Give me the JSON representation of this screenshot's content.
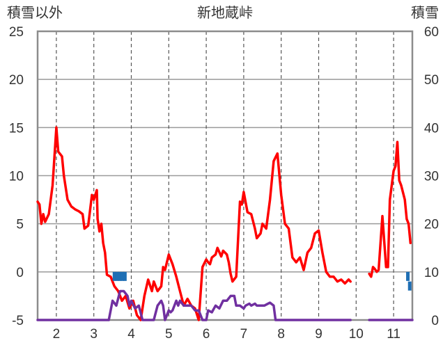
{
  "chart_data": {
    "type": "line",
    "title": "新地蔵峠",
    "left_axis_label": "積雪以外",
    "right_axis_label": "積雪",
    "x_range": [
      1.5,
      11.5
    ],
    "x_ticks": [
      2,
      3,
      4,
      5,
      6,
      7,
      8,
      9,
      10,
      11
    ],
    "x_tick_labels": [
      "2",
      "3",
      "4",
      "5",
      "6",
      "7",
      "8",
      "9",
      "10",
      "11"
    ],
    "y_left_range": [
      -5,
      25
    ],
    "y_left_ticks": [
      -5,
      0,
      5,
      10,
      15,
      20,
      25
    ],
    "y_left_tick_labels": [
      "-5",
      "0",
      "5",
      "10",
      "15",
      "20",
      "25"
    ],
    "y_right_range": [
      0,
      60
    ],
    "y_right_ticks": [
      0,
      10,
      20,
      30,
      40,
      50,
      60
    ],
    "y_right_tick_labels": [
      "0",
      "10",
      "20",
      "30",
      "40",
      "50",
      "60"
    ],
    "horizontal_gridlines": true,
    "vertical_gridlines": "dashed",
    "series": [
      {
        "axis": "left",
        "color": "#ff0000",
        "segments": [
          [
            [
              1.5,
              7.3
            ],
            [
              1.55,
              7.0
            ],
            [
              1.6,
              5.0
            ],
            [
              1.65,
              6.0
            ],
            [
              1.7,
              5.2
            ],
            [
              1.8,
              6.0
            ],
            [
              1.9,
              9.0
            ],
            [
              2.0,
              15.0
            ],
            [
              2.05,
              12.5
            ],
            [
              2.15,
              12.0
            ],
            [
              2.2,
              10.0
            ],
            [
              2.3,
              7.5
            ],
            [
              2.4,
              6.8
            ],
            [
              2.5,
              6.5
            ],
            [
              2.6,
              6.3
            ],
            [
              2.7,
              6.0
            ],
            [
              2.75,
              4.5
            ],
            [
              2.85,
              4.8
            ],
            [
              2.95,
              8.0
            ],
            [
              3.0,
              7.5
            ],
            [
              3.08,
              8.5
            ],
            [
              3.1,
              5.5
            ],
            [
              3.15,
              4.2
            ],
            [
              3.2,
              5.0
            ],
            [
              3.25,
              3.0
            ],
            [
              3.3,
              2.0
            ],
            [
              3.35,
              -0.3
            ],
            [
              3.45,
              -0.5
            ],
            [
              3.55,
              -1.5
            ],
            [
              3.65,
              -2.0
            ],
            [
              3.75,
              -3.0
            ],
            [
              3.85,
              -2.5
            ],
            [
              3.95,
              -3.8
            ],
            [
              4.05,
              -3.0
            ],
            [
              4.15,
              -4.5
            ],
            [
              4.25,
              -5.0
            ],
            [
              4.35,
              -2.5
            ],
            [
              4.45,
              -0.8
            ],
            [
              4.55,
              -2.0
            ],
            [
              4.6,
              -1.0
            ],
            [
              4.7,
              -2.0
            ],
            [
              4.8,
              -1.5
            ],
            [
              4.85,
              0.5
            ],
            [
              4.9,
              0.2
            ],
            [
              5.0,
              1.8
            ],
            [
              5.05,
              1.3
            ],
            [
              5.1,
              0.8
            ],
            [
              5.2,
              -0.5
            ],
            [
              5.3,
              -2.0
            ],
            [
              5.4,
              -3.5
            ],
            [
              5.5,
              -2.8
            ],
            [
              5.6,
              -3.5
            ],
            [
              5.7,
              -3.8
            ],
            [
              5.8,
              -5.0
            ],
            [
              5.9,
              0.5
            ],
            [
              6.0,
              1.3
            ],
            [
              6.05,
              1.0
            ],
            [
              6.1,
              0.8
            ],
            [
              6.15,
              1.5
            ],
            [
              6.25,
              1.8
            ],
            [
              6.3,
              2.5
            ],
            [
              6.4,
              1.6
            ],
            [
              6.45,
              2.2
            ],
            [
              6.55,
              1.8
            ],
            [
              6.6,
              1.0
            ],
            [
              6.65,
              -0.2
            ],
            [
              6.7,
              -1.0
            ],
            [
              6.8,
              -0.5
            ],
            [
              6.9,
              7.3
            ],
            [
              6.95,
              7.0
            ],
            [
              7.0,
              8.3
            ],
            [
              7.1,
              6.2
            ],
            [
              7.2,
              6.0
            ],
            [
              7.3,
              4.5
            ],
            [
              7.35,
              3.5
            ],
            [
              7.45,
              4.0
            ],
            [
              7.5,
              5.0
            ],
            [
              7.6,
              4.5
            ],
            [
              7.7,
              7.5
            ],
            [
              7.8,
              11.5
            ],
            [
              7.9,
              12.3
            ],
            [
              8.0,
              8.0
            ],
            [
              8.1,
              5.0
            ],
            [
              8.2,
              4.5
            ],
            [
              8.3,
              1.5
            ],
            [
              8.4,
              1.0
            ],
            [
              8.5,
              1.5
            ],
            [
              8.6,
              0.2
            ],
            [
              8.7,
              2.0
            ],
            [
              8.8,
              2.5
            ],
            [
              8.9,
              4.0
            ],
            [
              9.0,
              4.3
            ],
            [
              9.1,
              2.0
            ],
            [
              9.2,
              0.0
            ],
            [
              9.3,
              -0.5
            ],
            [
              9.4,
              -0.5
            ],
            [
              9.5,
              -1.0
            ],
            [
              9.6,
              -0.8
            ],
            [
              9.7,
              -1.2
            ],
            [
              9.8,
              -0.8
            ],
            [
              9.85,
              -1.0
            ]
          ],
          [
            [
              10.35,
              -0.2
            ],
            [
              10.4,
              -0.5
            ],
            [
              10.45,
              0.5
            ],
            [
              10.5,
              0.3
            ],
            [
              10.55,
              0.0
            ],
            [
              10.6,
              0.2
            ],
            [
              10.7,
              5.8
            ],
            [
              10.8,
              0.5
            ],
            [
              10.85,
              0.5
            ],
            [
              10.9,
              7.5
            ],
            [
              11.0,
              10.5
            ],
            [
              11.05,
              11.0
            ],
            [
              11.1,
              13.5
            ],
            [
              11.15,
              9.5
            ],
            [
              11.2,
              9.0
            ],
            [
              11.3,
              7.5
            ],
            [
              11.35,
              5.5
            ],
            [
              11.4,
              5.0
            ],
            [
              11.45,
              3.0
            ]
          ]
        ]
      },
      {
        "axis": "left",
        "color": "#7030a0",
        "segments": [
          [
            [
              1.5,
              -5.0
            ],
            [
              3.4,
              -5.0
            ],
            [
              3.5,
              -3.0
            ],
            [
              3.6,
              -3.5
            ],
            [
              3.7,
              -2.0
            ],
            [
              3.8,
              -2.0
            ],
            [
              3.9,
              -2.5
            ],
            [
              3.95,
              -3.5
            ],
            [
              4.0,
              -3.0
            ],
            [
              4.1,
              -3.8
            ],
            [
              4.2,
              -3.5
            ],
            [
              4.3,
              -5.0
            ],
            [
              4.6,
              -5.0
            ],
            [
              4.7,
              -3.5
            ],
            [
              4.8,
              -3.0
            ],
            [
              4.85,
              -3.5
            ],
            [
              4.9,
              -5.0
            ],
            [
              5.0,
              -4.0
            ],
            [
              5.05,
              -4.2
            ],
            [
              5.1,
              -4.0
            ],
            [
              5.2,
              -3.0
            ],
            [
              5.25,
              -3.5
            ],
            [
              5.3,
              -3.0
            ],
            [
              5.4,
              -3.5
            ],
            [
              5.5,
              -3.5
            ],
            [
              5.6,
              -3.5
            ],
            [
              5.7,
              -4.0
            ],
            [
              5.8,
              -4.0
            ],
            [
              5.9,
              -5.0
            ],
            [
              6.0,
              -5.0
            ],
            [
              6.05,
              -4.0
            ],
            [
              6.15,
              -4.2
            ],
            [
              6.25,
              -3.5
            ],
            [
              6.35,
              -3.8
            ],
            [
              6.45,
              -3.0
            ],
            [
              6.55,
              -3.0
            ],
            [
              6.65,
              -2.5
            ],
            [
              6.75,
              -2.5
            ],
            [
              6.8,
              -3.5
            ],
            [
              6.9,
              -3.5
            ],
            [
              7.0,
              -3.8
            ],
            [
              7.05,
              -3.5
            ],
            [
              7.15,
              -3.3
            ],
            [
              7.2,
              -3.5
            ],
            [
              7.3,
              -3.3
            ],
            [
              7.35,
              -3.5
            ],
            [
              7.45,
              -3.5
            ],
            [
              7.55,
              -3.5
            ],
            [
              7.7,
              -3.2
            ],
            [
              7.8,
              -3.5
            ],
            [
              7.85,
              -5.0
            ],
            [
              9.85,
              -5.0
            ]
          ],
          [
            [
              10.35,
              -5.0
            ],
            [
              11.5,
              -5.0
            ]
          ]
        ]
      }
    ],
    "bar_series": {
      "axis": "right",
      "color": "#1f6fb4",
      "points": [
        [
          3.55,
          10.0
        ],
        [
          3.62,
          10.0
        ],
        [
          3.69,
          10.0
        ],
        [
          3.76,
          10.0
        ],
        [
          3.83,
          10.0
        ],
        [
          11.38,
          10.0
        ],
        [
          11.43,
          8.0
        ]
      ]
    }
  }
}
